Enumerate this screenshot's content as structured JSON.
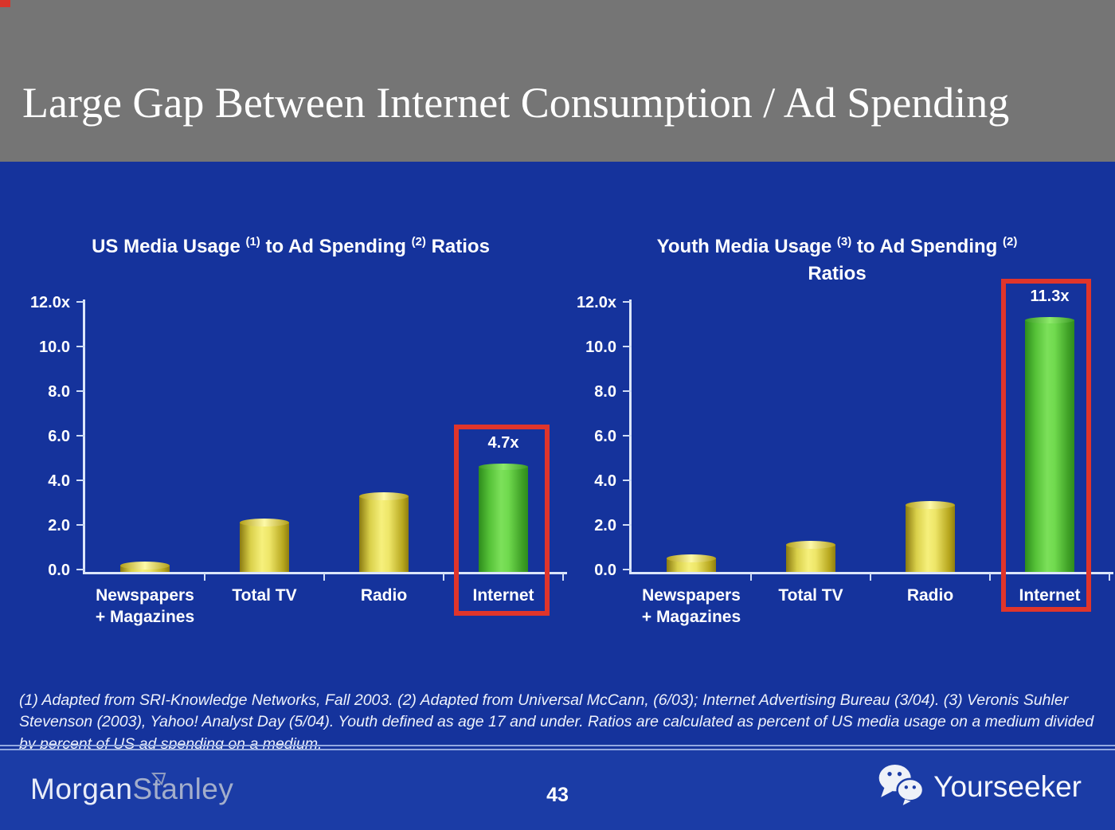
{
  "slide": {
    "title": "Large Gap Between Internet Consumption / Ad Spending",
    "page_number": "43",
    "footnote": "(1) Adapted from SRI-Knowledge Networks, Fall 2003.  (2) Adapted from Universal McCann, (6/03); Internet Advertising Bureau (3/04). (3) Veronis Suhler Stevenson (2003), Yahoo! Analyst Day (5/04).  Youth defined as age 17 and under.  Ratios are calculated as percent of US media usage on a medium divided by percent of US ad spending on a medium.",
    "brand": {
      "part1": "Morgan",
      "part2": "Stanley",
      "icon": "morgan-stanley-flag-icon"
    },
    "watermark": {
      "label": "Yourseeker",
      "icon": "wechat-icon"
    }
  },
  "colors": {
    "header_gray": "#757575",
    "body_blue": "#15339c",
    "footer_blue": "#1b3ca6",
    "bar_yellow": "#f6f07c",
    "bar_green": "#7ce05a",
    "highlight_red": "#e0352b",
    "axis_white": "#dce6fa",
    "text_white": "#ffffff"
  },
  "chart_data": [
    {
      "type": "bar",
      "title": "US Media Usage (1) to Ad Spending (2) Ratios",
      "title_lines": [
        [
          "US Media Usage ",
          "(1)",
          " to Ad Spending ",
          "(2)",
          " Ratios"
        ]
      ],
      "categories": [
        "Newspapers\n+ Magazines",
        "Total TV",
        "Radio",
        "Internet"
      ],
      "values": [
        0.3,
        2.2,
        3.4,
        4.7
      ],
      "bar_colors": [
        "yellow",
        "yellow",
        "yellow",
        "green"
      ],
      "data_labels": [
        "",
        "",
        "",
        "4.7x"
      ],
      "highlighted_category": "Internet",
      "xlabel": "",
      "ylabel": "",
      "ylim": [
        0,
        12
      ],
      "y_ticks": [
        "12.0x",
        "10.0",
        "8.0",
        "6.0",
        "4.0",
        "2.0",
        "0.0"
      ],
      "grid": false,
      "legend": "none"
    },
    {
      "type": "bar",
      "title": "Youth Media Usage (3) to Ad Spending (2) Ratios",
      "title_lines": [
        [
          "Youth Media Usage ",
          "(3)",
          " to Ad Spending ",
          "(2)"
        ],
        [
          "Ratios"
        ]
      ],
      "categories": [
        "Newspapers\n+ Magazines",
        "Total TV",
        "Radio",
        "Internet"
      ],
      "values": [
        0.6,
        1.2,
        3.0,
        11.3
      ],
      "bar_colors": [
        "yellow",
        "yellow",
        "yellow",
        "green"
      ],
      "data_labels": [
        "",
        "",
        "",
        "11.3x"
      ],
      "highlighted_category": "Internet",
      "xlabel": "",
      "ylabel": "",
      "ylim": [
        0,
        12
      ],
      "y_ticks": [
        "12.0x",
        "10.0",
        "8.0",
        "6.0",
        "4.0",
        "2.0",
        "0.0"
      ],
      "grid": false,
      "legend": "none"
    }
  ]
}
